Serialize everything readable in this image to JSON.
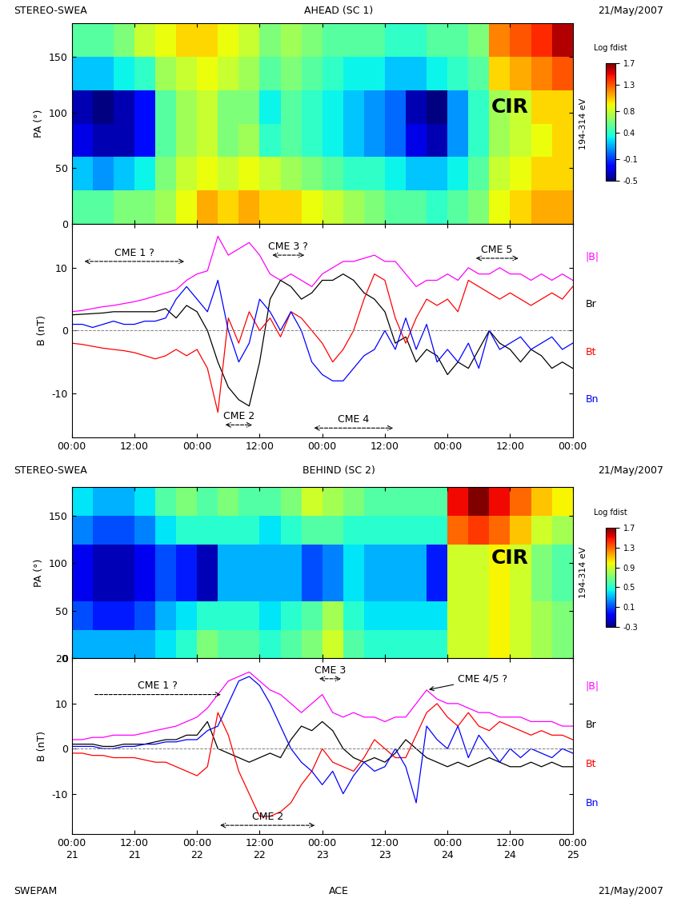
{
  "headers": [
    {
      "left": "STEREO-SWEA",
      "center": "AHEAD (SC 1)",
      "right": "21/May/2007"
    },
    {
      "left": "STEREO-SWEA",
      "center": "BEHIND (SC 2)",
      "right": "21/May/2007"
    },
    {
      "left": "SWEPAM",
      "center": "ACE",
      "right": "21/May/2007"
    }
  ],
  "chart_data": [
    {
      "type": "heatmap",
      "y_label": "PA (°)",
      "side_label": "194-314 eV",
      "tick_labels": "y",
      "x_edges": [
        0,
        4,
        8,
        12,
        16,
        20,
        24,
        28,
        32,
        36,
        40,
        44,
        48,
        52,
        56,
        60,
        64,
        68,
        72,
        76,
        80,
        84,
        88,
        92,
        96
      ],
      "y_edges": [
        0,
        30,
        60,
        90,
        120,
        150,
        180
      ],
      "cells": [
        [
          0.5,
          0.5,
          0.6,
          0.6,
          0.7,
          0.9,
          1.1,
          1.0,
          1.1,
          1.0,
          1.0,
          0.9,
          0.8,
          0.7,
          0.6,
          0.5,
          0.5,
          0.4,
          0.5,
          0.6,
          0.9,
          1.0,
          1.1,
          1.1
        ],
        [
          0.2,
          0.1,
          0.2,
          0.3,
          0.6,
          0.8,
          0.9,
          0.8,
          0.9,
          0.8,
          0.7,
          0.6,
          0.5,
          0.4,
          0.4,
          0.3,
          0.2,
          0.2,
          0.3,
          0.5,
          0.8,
          0.9,
          1.0,
          1.0
        ],
        [
          -0.3,
          -0.4,
          -0.4,
          -0.2,
          0.5,
          0.7,
          0.8,
          0.6,
          0.7,
          0.4,
          0.5,
          0.4,
          0.3,
          0.2,
          0.1,
          0.0,
          -0.3,
          -0.4,
          0.1,
          0.4,
          0.7,
          0.8,
          0.9,
          1.0
        ],
        [
          -0.4,
          -0.5,
          -0.4,
          -0.2,
          0.5,
          0.7,
          0.8,
          0.6,
          0.6,
          0.3,
          0.5,
          0.4,
          0.3,
          0.2,
          0.1,
          0.0,
          -0.4,
          -0.5,
          0.1,
          0.4,
          0.7,
          0.8,
          1.0,
          1.0
        ],
        [
          0.2,
          0.2,
          0.3,
          0.4,
          0.7,
          0.8,
          0.9,
          0.8,
          0.7,
          0.5,
          0.6,
          0.5,
          0.4,
          0.3,
          0.3,
          0.2,
          0.2,
          0.3,
          0.4,
          0.5,
          1.0,
          1.1,
          1.2,
          1.3
        ],
        [
          0.5,
          0.5,
          0.6,
          0.8,
          0.9,
          1.0,
          1.0,
          0.9,
          0.8,
          0.6,
          0.7,
          0.6,
          0.5,
          0.5,
          0.5,
          0.4,
          0.4,
          0.5,
          0.5,
          0.6,
          1.2,
          1.3,
          1.4,
          1.6
        ]
      ],
      "colorbar": {
        "label": "Log fdist",
        "range": [
          -0.5,
          1.7
        ],
        "ticks": [
          1.7,
          1.3,
          0.8,
          0.4,
          -0.1,
          -0.5
        ]
      },
      "xlim": [
        0,
        96
      ],
      "xticks": [
        0,
        12,
        24,
        36,
        48,
        60,
        72,
        84,
        96
      ],
      "ylim": [
        0,
        180
      ],
      "yticks": [
        0,
        50,
        100,
        150
      ],
      "annotations": [
        {
          "text": "CIR",
          "x": 84,
          "y": 105
        }
      ]
    },
    {
      "type": "line",
      "y_label": "B (nT)",
      "baseline": 0,
      "x": [
        0,
        2,
        4,
        6,
        8,
        10,
        12,
        14,
        16,
        18,
        20,
        22,
        24,
        26,
        28,
        30,
        32,
        34,
        36,
        38,
        40,
        42,
        44,
        46,
        48,
        50,
        52,
        54,
        56,
        58,
        60,
        62,
        64,
        66,
        68,
        70,
        72,
        74,
        76,
        78,
        80,
        82,
        84,
        86,
        88,
        90,
        92,
        94,
        96
      ],
      "series": [
        {
          "name": "|B|",
          "color": "#ff00ff",
          "values": [
            3,
            3.2,
            3.5,
            3.8,
            4,
            4.3,
            4.6,
            5,
            5.5,
            6,
            6.5,
            8,
            9,
            9.5,
            15,
            12,
            13,
            14,
            12,
            9,
            8,
            9,
            8,
            7,
            9,
            10,
            11,
            11,
            11.5,
            12,
            11,
            11,
            9,
            7,
            8,
            8,
            9,
            8,
            10,
            9,
            9,
            10,
            9,
            9,
            8,
            9,
            8,
            9,
            8
          ]
        },
        {
          "name": "Br",
          "color": "#000000",
          "values": [
            2.5,
            2.6,
            2.7,
            2.8,
            3,
            3,
            3,
            3,
            3,
            3.5,
            2,
            4,
            3,
            0,
            -5,
            -9,
            -11,
            -12,
            -5,
            5,
            8,
            7,
            5,
            6,
            8,
            8,
            9,
            8,
            6,
            5,
            3,
            -2,
            -1,
            -5,
            -3,
            -4,
            -7,
            -5,
            -6,
            -3,
            0,
            -2,
            -3,
            -5,
            -3,
            -4,
            -6,
            -5,
            -6
          ]
        },
        {
          "name": "Bt",
          "color": "#ff0000",
          "values": [
            -2,
            -2.2,
            -2.5,
            -2.8,
            -3,
            -3.2,
            -3.5,
            -4,
            -4.5,
            -4,
            -3,
            -4,
            -3,
            -6,
            -13,
            2,
            -2,
            3,
            0,
            2,
            -1,
            3,
            2,
            0,
            -2,
            -5,
            -3,
            0,
            5,
            9,
            8,
            2,
            -2,
            2,
            5,
            4,
            5,
            3,
            8,
            7,
            6,
            5,
            6,
            5,
            4,
            5,
            6,
            5,
            7
          ]
        },
        {
          "name": "Bn",
          "color": "#0000ff",
          "values": [
            1,
            1,
            0.5,
            1,
            1.5,
            1,
            1,
            1.5,
            1.5,
            2,
            5,
            7,
            5,
            3,
            8,
            0,
            -5,
            -2,
            5,
            3,
            0,
            3,
            0,
            -5,
            -7,
            -8,
            -8,
            -6,
            -4,
            -3,
            0,
            -3,
            2,
            -3,
            1,
            -5,
            -3,
            -5,
            -2,
            -6,
            0,
            -3,
            -2,
            -1,
            -3,
            -2,
            -1,
            -3,
            -2
          ]
        }
      ],
      "xlim": [
        0,
        96
      ],
      "xticks": [
        {
          "value": 0,
          "label": "00:00"
        },
        {
          "value": 12,
          "label": "12:00"
        },
        {
          "value": 24,
          "label": "00:00"
        },
        {
          "value": 36,
          "label": "12:00"
        },
        {
          "value": 48,
          "label": "00:00"
        },
        {
          "value": 60,
          "label": "12:00"
        },
        {
          "value": 72,
          "label": "00:00"
        },
        {
          "value": 84,
          "label": "12:00"
        },
        {
          "value": 96,
          "label": "00:00"
        }
      ],
      "ylim": [
        -17,
        17
      ],
      "yticks": [
        -10,
        0,
        10
      ],
      "annotations": [
        {
          "text": "CME 1 ?",
          "arrow": "both",
          "x": [
            2,
            22
          ],
          "y": 11
        },
        {
          "text": "CME 2",
          "arrow": "both",
          "x": [
            29,
            35
          ],
          "y": -15
        },
        {
          "text": "CME 3 ?",
          "arrow": "both",
          "x": [
            38,
            45
          ],
          "y": 12
        },
        {
          "text": "CME 4",
          "arrow": "both",
          "x": [
            46,
            62
          ],
          "y": -15.5
        },
        {
          "text": "CME 5",
          "arrow": "both",
          "x": [
            77,
            86
          ],
          "y": 11.5
        }
      ]
    },
    {
      "type": "heatmap",
      "y_label": "PA (°)",
      "side_label": "194-314 eV",
      "tick_labels": "y",
      "x_edges": [
        0,
        4,
        8,
        12,
        16,
        20,
        24,
        28,
        32,
        36,
        40,
        44,
        48,
        52,
        56,
        60,
        64,
        68,
        72,
        76,
        80,
        84,
        88,
        92,
        96
      ],
      "y_edges": [
        0,
        30,
        60,
        90,
        120,
        150,
        180
      ],
      "cells": [
        [
          0.3,
          0.3,
          0.3,
          0.3,
          0.4,
          0.5,
          0.7,
          0.6,
          0.6,
          0.5,
          0.6,
          0.7,
          0.9,
          0.6,
          0.5,
          0.5,
          0.5,
          0.5,
          0.9,
          0.9,
          1.0,
          0.9,
          0.8,
          0.7
        ],
        [
          0.1,
          0.0,
          0.0,
          0.1,
          0.3,
          0.4,
          0.5,
          0.5,
          0.5,
          0.4,
          0.5,
          0.6,
          0.8,
          0.5,
          0.4,
          0.4,
          0.4,
          0.4,
          0.9,
          0.9,
          1.0,
          0.9,
          0.8,
          0.7
        ],
        [
          -0.1,
          -0.2,
          -0.2,
          -0.1,
          0.1,
          0.0,
          -0.2,
          0.3,
          0.3,
          0.3,
          0.3,
          0.1,
          0.2,
          0.4,
          0.3,
          0.3,
          0.3,
          0.0,
          0.9,
          0.9,
          1.0,
          0.9,
          0.7,
          0.6
        ],
        [
          -0.1,
          -0.2,
          -0.2,
          -0.1,
          0.1,
          0.0,
          -0.2,
          0.3,
          0.3,
          0.3,
          0.3,
          0.1,
          0.2,
          0.4,
          0.3,
          0.3,
          0.3,
          0.0,
          0.9,
          0.9,
          1.0,
          0.9,
          0.7,
          0.6
        ],
        [
          0.2,
          0.1,
          0.1,
          0.2,
          0.4,
          0.5,
          0.5,
          0.5,
          0.5,
          0.4,
          0.5,
          0.6,
          0.6,
          0.5,
          0.5,
          0.5,
          0.5,
          0.5,
          1.3,
          1.4,
          1.3,
          1.1,
          0.9,
          0.8
        ],
        [
          0.4,
          0.3,
          0.3,
          0.4,
          0.6,
          0.7,
          0.6,
          0.7,
          0.6,
          0.6,
          0.7,
          0.9,
          0.8,
          0.7,
          0.6,
          0.6,
          0.6,
          0.6,
          1.5,
          1.7,
          1.5,
          1.3,
          1.1,
          1.0
        ]
      ],
      "colorbar": {
        "label": "Log fdist",
        "range": [
          -0.3,
          1.7
        ],
        "ticks": [
          1.7,
          1.3,
          0.9,
          0.5,
          0.1,
          -0.3
        ]
      },
      "xlim": [
        0,
        96
      ],
      "xticks": [
        0,
        12,
        24,
        36,
        48,
        60,
        72,
        84,
        96
      ],
      "ylim": [
        0,
        180
      ],
      "yticks": [
        0,
        50,
        100,
        150
      ],
      "annotations": [
        {
          "text": "CIR",
          "x": 84,
          "y": 105
        }
      ]
    },
    {
      "type": "line",
      "y_label": "B (nT)",
      "baseline": 0,
      "x": [
        0,
        2,
        4,
        6,
        8,
        10,
        12,
        14,
        16,
        18,
        20,
        22,
        24,
        26,
        28,
        30,
        32,
        34,
        36,
        38,
        40,
        42,
        44,
        46,
        48,
        50,
        52,
        54,
        56,
        58,
        60,
        62,
        64,
        66,
        68,
        70,
        72,
        74,
        76,
        78,
        80,
        82,
        84,
        86,
        88,
        90,
        92,
        94,
        96
      ],
      "series": [
        {
          "name": "|B|",
          "color": "#ff00ff",
          "values": [
            2,
            2,
            2.5,
            2.5,
            3,
            3,
            3,
            3.5,
            4,
            4.5,
            5,
            6,
            7,
            9,
            12,
            15,
            16,
            17,
            15,
            13,
            12,
            10,
            8,
            10,
            12,
            8,
            7,
            8,
            7,
            7,
            6,
            7,
            7,
            10,
            13,
            11,
            10,
            10,
            9,
            8,
            8,
            7,
            7,
            7,
            6,
            6,
            6,
            5,
            5
          ]
        },
        {
          "name": "Br",
          "color": "#000000",
          "values": [
            1,
            1,
            1,
            0.5,
            0.5,
            1,
            1,
            1,
            1.5,
            2,
            2,
            3,
            3,
            6,
            0,
            -1,
            -2,
            -3,
            -2,
            -1,
            -2,
            2,
            5,
            4,
            6,
            4,
            0,
            -2,
            -3,
            -2,
            -3,
            -1,
            2,
            0,
            -2,
            -3,
            -4,
            -3,
            -4,
            -3,
            -2,
            -3,
            -4,
            -4,
            -3,
            -4,
            -3,
            -4,
            -4
          ]
        },
        {
          "name": "Bt",
          "color": "#ff0000",
          "values": [
            -1,
            -1,
            -1.5,
            -1.5,
            -2,
            -2,
            -2,
            -2.5,
            -3,
            -3,
            -4,
            -5,
            -6,
            -4,
            8,
            3,
            -5,
            -10,
            -15,
            -15,
            -14,
            -12,
            -8,
            -5,
            0,
            -3,
            -4,
            -5,
            -2,
            2,
            0,
            -2,
            -2,
            3,
            8,
            10,
            7,
            5,
            8,
            5,
            4,
            6,
            5,
            4,
            3,
            4,
            3,
            3,
            2
          ]
        },
        {
          "name": "Bn",
          "color": "#0000ff",
          "values": [
            0.5,
            0.5,
            0.5,
            0,
            0,
            0.5,
            0.5,
            1,
            1,
            1.5,
            1.5,
            2,
            2,
            4,
            5,
            10,
            15,
            16,
            14,
            10,
            5,
            0,
            -3,
            -5,
            -8,
            -5,
            -10,
            -6,
            -3,
            -5,
            -4,
            0,
            -4,
            -12,
            5,
            2,
            0,
            5,
            -2,
            3,
            0,
            -3,
            0,
            -2,
            0,
            -1,
            -2,
            0,
            -1
          ]
        }
      ],
      "xlim": [
        0,
        96
      ],
      "xticks": [
        {
          "value": 0,
          "label": "00:00\n21"
        },
        {
          "value": 12,
          "label": "12:00\n21"
        },
        {
          "value": 24,
          "label": "00:00\n22"
        },
        {
          "value": 36,
          "label": "12:00\n22"
        },
        {
          "value": 48,
          "label": "00:00\n23"
        },
        {
          "value": 60,
          "label": "12:00\n23"
        },
        {
          "value": 72,
          "label": "00:00\n24"
        },
        {
          "value": 84,
          "label": "12:00\n24"
        },
        {
          "value": 96,
          "label": "00:00\n25"
        }
      ],
      "ylim": [
        -19,
        20
      ],
      "yticks": [
        -10,
        0,
        10,
        20
      ],
      "annotations": [
        {
          "text": "CME 1 ?",
          "arrow": "right",
          "x": [
            4,
            29
          ],
          "y": 12
        },
        {
          "text": "CME 2",
          "arrow": "both",
          "x": [
            28,
            47
          ],
          "y": -17
        },
        {
          "text": "CME 3",
          "arrow": "both",
          "x": [
            47,
            52
          ],
          "y": 15.5
        },
        {
          "text": "CME 4/5 ?",
          "arrow": "point",
          "xy": [
            68,
            13
          ],
          "xytext": [
            74,
            15.5
          ]
        }
      ]
    }
  ]
}
